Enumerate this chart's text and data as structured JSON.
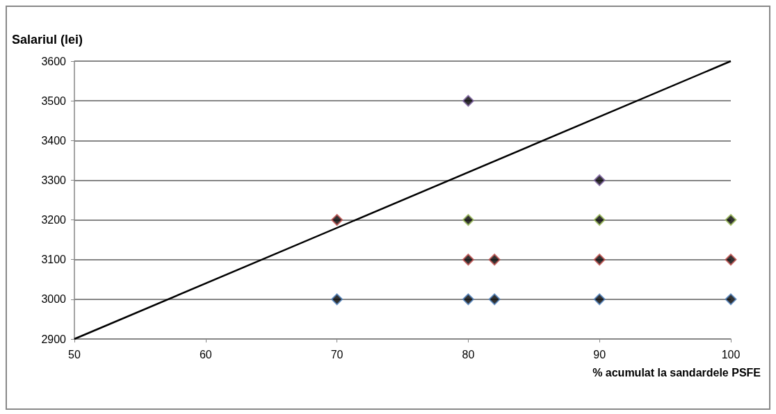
{
  "chart_data": {
    "type": "scatter",
    "xlabel": "% acumulat la sandardele PSFE",
    "ylabel": "Salariul (lei)",
    "series": [
      {
        "color": "#4f81bd",
        "x": [
          70,
          80,
          82,
          90,
          100
        ],
        "values": [
          3000,
          3000,
          3000,
          3000,
          3000
        ]
      },
      {
        "color": "#c0504d",
        "x": [
          70,
          80,
          82,
          90,
          100
        ],
        "values": [
          3200,
          3100,
          3100,
          3100,
          3100
        ]
      },
      {
        "color": "#9bbb59",
        "x": [
          80,
          90,
          100
        ],
        "values": [
          3200,
          3200,
          3200
        ]
      },
      {
        "color": "#8064a2",
        "x": [
          80,
          90
        ],
        "values": [
          3500,
          3300
        ]
      },
      {
        "type": "line",
        "color": "#000000",
        "x": [
          50,
          100
        ],
        "values": [
          2900,
          3600
        ],
        "marker": "none"
      }
    ],
    "xlim": [
      50,
      100
    ],
    "xticks": [
      50,
      60,
      70,
      80,
      90,
      100
    ],
    "ylim": [
      2900,
      3600
    ],
    "yticks": [
      2900,
      3000,
      3100,
      3200,
      3300,
      3400,
      3500,
      3600
    ],
    "grid": "y",
    "marker": "diamond"
  }
}
